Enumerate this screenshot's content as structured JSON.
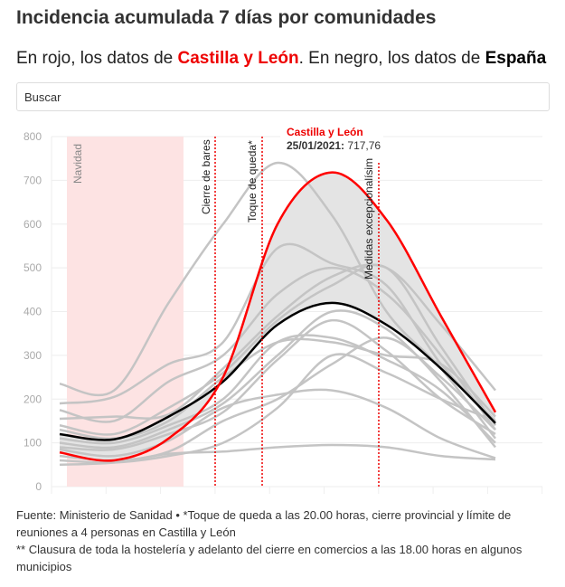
{
  "title": "Incidencia acumulada 7 días por comunidades",
  "subtitle": {
    "p1": "En rojo, los datos de ",
    "red": "Castilla y León",
    "p2": ". En negro, los datos de ",
    "black": "España"
  },
  "search": {
    "placeholder": "Buscar"
  },
  "chart_data": {
    "type": "line",
    "ylim": [
      0,
      800
    ],
    "yticks": [
      "0",
      "100",
      "200",
      "300",
      "400",
      "500",
      "600",
      "700",
      "800"
    ],
    "grid": true,
    "colors": {
      "highlight": "#ff0000",
      "national": "#000000",
      "other": "#c4c4c4",
      "band": "#fde3e3"
    },
    "series": [
      {
        "name": "Castilla y León",
        "values": [
          78,
          60,
          110,
          250,
          600,
          718,
          610,
          390,
          170
        ]
      },
      {
        "name": "España",
        "values": [
          120,
          108,
          160,
          240,
          370,
          420,
          370,
          270,
          145
        ]
      }
    ],
    "other_series": [
      [
        235,
        220,
        420,
        600,
        740,
        620,
        400,
        270,
        110
      ],
      [
        190,
        205,
        280,
        330,
        545,
        510,
        460,
        280,
        150
      ],
      [
        175,
        150,
        240,
        300,
        440,
        500,
        440,
        300,
        130
      ],
      [
        155,
        160,
        165,
        270,
        390,
        480,
        500,
        370,
        220
      ],
      [
        140,
        120,
        180,
        260,
        380,
        460,
        500,
        320,
        140
      ],
      [
        130,
        110,
        150,
        250,
        330,
        330,
        300,
        280,
        160
      ],
      [
        110,
        100,
        140,
        200,
        330,
        340,
        290,
        220,
        100
      ],
      [
        100,
        90,
        130,
        190,
        300,
        400,
        360,
        240,
        90
      ],
      [
        90,
        85,
        120,
        170,
        290,
        380,
        310,
        200,
        120
      ],
      [
        85,
        70,
        105,
        180,
        210,
        220,
        180,
        110,
        65
      ],
      [
        70,
        60,
        80,
        150,
        200,
        280,
        340,
        250,
        130
      ],
      [
        60,
        55,
        70,
        100,
        180,
        300,
        260,
        200,
        150
      ],
      [
        50,
        55,
        75,
        80,
        90,
        95,
        90,
        70,
        62
      ]
    ],
    "annotations": {
      "band": "Navidad",
      "lines": [
        "Cierre de bares",
        "Toque de queda*",
        "Medidas excepcionalísim"
      ]
    },
    "tooltip": {
      "name": "Castilla y León",
      "date": "25/01/2021:",
      "value": "717,76"
    }
  },
  "footer": {
    "line1": "Fuente: Ministerio de Sanidad • *Toque de queda a las 20.00 horas, cierre provincial y límite de reuniones a 4 personas en Castilla y León",
    "line2": "** Clausura de toda la hostelería y adelanto del cierre en comercios a las 18.00 horas en algunos municipios"
  }
}
